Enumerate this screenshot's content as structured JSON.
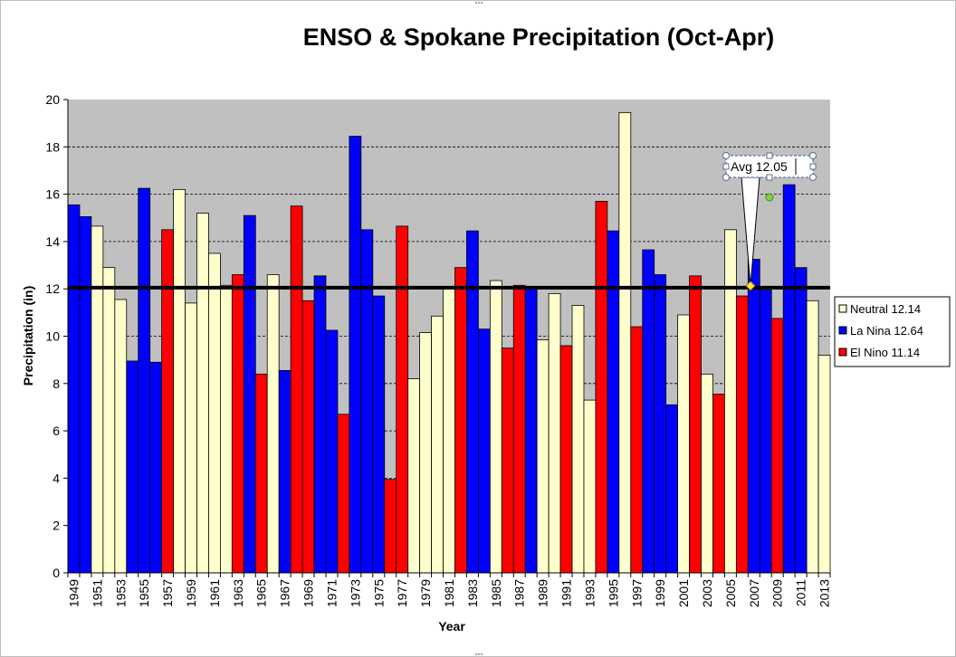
{
  "chart_data": {
    "type": "bar",
    "title": "ENSO & Spokane Precipitation (Oct-Apr)",
    "xlabel": "Year",
    "ylabel": "Precipitation (in)",
    "ylim": [
      0,
      20
    ],
    "yticks": [
      "0",
      "2",
      "4",
      "6",
      "8",
      "10",
      "12",
      "14",
      "16",
      "18",
      "20"
    ],
    "grid": true,
    "legend_position": "right",
    "colors": {
      "Neutral": "#ffffcc",
      "La Nina": "#0000ff",
      "El Nino": "#ff0000",
      "plot_bg": "#c0c0c0",
      "avg_line": "#000000"
    },
    "series": [
      {
        "key": "Neutral",
        "name": "Neutral 12.14"
      },
      {
        "key": "La Nina",
        "name": "La Nina 12.64"
      },
      {
        "key": "El Nino",
        "name": "El Nino 11.14"
      }
    ],
    "categories": [
      1949,
      1950,
      1951,
      1952,
      1953,
      1954,
      1955,
      1956,
      1957,
      1958,
      1959,
      1960,
      1961,
      1962,
      1963,
      1964,
      1965,
      1966,
      1967,
      1968,
      1969,
      1970,
      1971,
      1972,
      1973,
      1974,
      1975,
      1976,
      1977,
      1978,
      1979,
      1980,
      1981,
      1982,
      1983,
      1984,
      1985,
      1986,
      1987,
      1988,
      1989,
      1990,
      1991,
      1992,
      1993,
      1994,
      1995,
      1996,
      1997,
      1998,
      1999,
      2000,
      2001,
      2002,
      2003,
      2004,
      2005,
      2006,
      2007,
      2008,
      2009,
      2010,
      2011,
      2012,
      2013
    ],
    "tick_labels": [
      "1949",
      "1951",
      "1953",
      "1955",
      "1957",
      "1959",
      "1961",
      "1963",
      "1965",
      "1967",
      "1969",
      "1971",
      "1973",
      "1975",
      "1977",
      "1979",
      "1981",
      "1983",
      "1985",
      "1987",
      "1989",
      "1991",
      "1993",
      "1995",
      "1997",
      "1999",
      "2001",
      "2003",
      "2005",
      "2007",
      "2009",
      "2011",
      "2013"
    ],
    "values": [
      15.55,
      15.05,
      14.65,
      12.9,
      11.55,
      8.95,
      16.25,
      8.9,
      14.5,
      16.2,
      11.4,
      15.2,
      13.5,
      12.15,
      12.6,
      15.1,
      8.4,
      12.6,
      8.55,
      15.5,
      11.5,
      12.55,
      10.25,
      6.7,
      18.45,
      14.5,
      11.7,
      3.95,
      14.65,
      8.2,
      10.15,
      10.85,
      12.0,
      12.9,
      14.45,
      10.3,
      12.35,
      9.5,
      12.15,
      12.0,
      9.85,
      11.8,
      9.6,
      11.3,
      7.3,
      15.7,
      14.45,
      19.45,
      10.4,
      13.65,
      12.6,
      7.1,
      10.9,
      12.55,
      8.4,
      7.55,
      14.5,
      11.7,
      13.25,
      11.95,
      10.75,
      16.4,
      12.9,
      11.5,
      9.2
    ],
    "phases": [
      "La Nina",
      "La Nina",
      "Neutral",
      "Neutral",
      "Neutral",
      "La Nina",
      "La Nina",
      "La Nina",
      "El Nino",
      "Neutral",
      "Neutral",
      "Neutral",
      "Neutral",
      "Neutral",
      "El Nino",
      "La Nina",
      "El Nino",
      "Neutral",
      "La Nina",
      "El Nino",
      "El Nino",
      "La Nina",
      "La Nina",
      "El Nino",
      "La Nina",
      "La Nina",
      "La Nina",
      "El Nino",
      "El Nino",
      "Neutral",
      "Neutral",
      "Neutral",
      "Neutral",
      "El Nino",
      "La Nina",
      "La Nina",
      "Neutral",
      "El Nino",
      "El Nino",
      "La Nina",
      "Neutral",
      "Neutral",
      "El Nino",
      "Neutral",
      "Neutral",
      "El Nino",
      "La Nina",
      "Neutral",
      "El Nino",
      "La Nina",
      "La Nina",
      "La Nina",
      "Neutral",
      "El Nino",
      "Neutral",
      "El Nino",
      "Neutral",
      "El Nino",
      "La Nina",
      "La Nina",
      "El Nino",
      "La Nina",
      "La Nina",
      "Neutral",
      "Neutral"
    ],
    "average": {
      "value": 12.05,
      "label": "Avg 12.05"
    }
  }
}
